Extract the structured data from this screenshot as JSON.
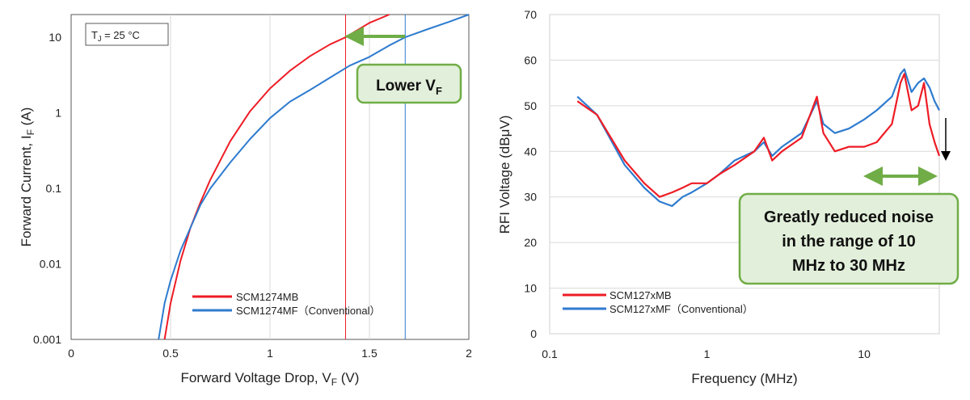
{
  "colors": {
    "series_new": "#ee1c25",
    "series_conventional": "#2e7bcf",
    "callout_fill": "#e2efda",
    "callout_border": "#70ad47",
    "arrow_green": "#70ad47"
  },
  "chart_data": [
    {
      "type": "line",
      "xlabel": "Forward Voltage Drop, V",
      "xlabel_sub": "F",
      "xlabel_unit": " (V)",
      "ylabel": "Forward Current, I",
      "ylabel_sub": "F",
      "ylabel_unit": " (A)",
      "xlim": [
        0,
        2
      ],
      "ylim": [
        0.001,
        20
      ],
      "yscale": "log",
      "xticks": [
        0,
        0.5,
        1,
        1.5,
        2
      ],
      "xtick_labels": [
        "0",
        "0.5",
        "1",
        "1.5",
        "2"
      ],
      "yticks": [
        0.001,
        0.01,
        0.1,
        1,
        10
      ],
      "ytick_labels": [
        "0.001",
        "0.01",
        "0.1",
        "1",
        "10"
      ],
      "grid": "vertical",
      "condition_label": "T",
      "condition_sub": "J",
      "condition_value": " = 25 °C",
      "legend_placement": "bottom-center",
      "series": [
        {
          "name": "SCM1274MB",
          "color": "#ee1c25",
          "x": [
            0.47,
            0.5,
            0.55,
            0.6,
            0.65,
            0.7,
            0.8,
            0.9,
            1.0,
            1.1,
            1.2,
            1.3,
            1.38,
            1.5,
            1.6
          ],
          "y": [
            0.001,
            0.003,
            0.011,
            0.03,
            0.065,
            0.13,
            0.42,
            1.05,
            2.1,
            3.6,
            5.6,
            8.0,
            10.0,
            15.5,
            20.0
          ]
        },
        {
          "name": "SCM1274MF（Conventional）",
          "color": "#2e7bcf",
          "x": [
            0.44,
            0.47,
            0.5,
            0.55,
            0.6,
            0.65,
            0.7,
            0.8,
            0.9,
            1.0,
            1.1,
            1.2,
            1.3,
            1.4,
            1.5,
            1.6,
            1.68,
            1.8,
            1.9,
            2.0
          ],
          "y": [
            0.001,
            0.003,
            0.006,
            0.015,
            0.03,
            0.06,
            0.1,
            0.22,
            0.45,
            0.85,
            1.4,
            2.0,
            2.9,
            4.2,
            5.5,
            7.8,
            10.0,
            13.0,
            16.0,
            20.0
          ]
        }
      ],
      "markers": [
        {
          "x": 1.38,
          "color": "#ee1c25"
        },
        {
          "x": 1.68,
          "color": "#2e7bcf"
        }
      ],
      "annotation_main": "Lower V",
      "annotation_sub": "F"
    },
    {
      "type": "line",
      "xlabel": "Frequency (MHz)",
      "ylabel": "RFI Voltage (dBμV)",
      "xlim": [
        0.1,
        30
      ],
      "xscale": "log",
      "ylim": [
        0,
        70
      ],
      "xticks": [
        0.1,
        1,
        10
      ],
      "xtick_labels": [
        "0.1",
        "1",
        "10"
      ],
      "yticks": [
        0,
        10,
        20,
        30,
        40,
        50,
        60,
        70
      ],
      "ytick_labels": [
        "0",
        "10",
        "20",
        "30",
        "40",
        "50",
        "60",
        "70"
      ],
      "legend_placement": "bottom-left",
      "series": [
        {
          "name": "SCM127xMB",
          "color": "#ee1c25",
          "x": [
            0.15,
            0.2,
            0.3,
            0.4,
            0.5,
            0.6,
            0.7,
            0.8,
            1.0,
            1.2,
            1.5,
            2.0,
            2.3,
            2.6,
            3.0,
            4.0,
            5.0,
            5.5,
            6.5,
            8.0,
            10.0,
            12.0,
            15.0,
            17.0,
            18.0,
            20.0,
            22.0,
            24.0,
            26.0,
            28.0,
            30.0
          ],
          "y": [
            51.0,
            48.0,
            38.0,
            33.0,
            30.0,
            31.0,
            32.0,
            33.0,
            33.0,
            35.0,
            37.0,
            40.0,
            43.0,
            38.0,
            40.0,
            43.0,
            52.0,
            44.0,
            40.0,
            41.0,
            41.0,
            42.0,
            46.0,
            55.0,
            57.0,
            49.0,
            50.0,
            55.0,
            46.0,
            42.0,
            39.0
          ]
        },
        {
          "name": "SCM127xMF（Conventional）",
          "color": "#2e7bcf",
          "x": [
            0.15,
            0.2,
            0.3,
            0.4,
            0.5,
            0.6,
            0.7,
            0.8,
            1.0,
            1.2,
            1.5,
            2.0,
            2.3,
            2.6,
            3.0,
            4.0,
            5.0,
            5.5,
            6.5,
            8.0,
            10.0,
            12.0,
            15.0,
            17.0,
            18.0,
            20.0,
            22.0,
            24.0,
            26.0,
            28.0,
            30.0
          ],
          "y": [
            52.0,
            48.0,
            37.0,
            32.0,
            29.0,
            28.0,
            30.0,
            31.0,
            33.0,
            35.0,
            38.0,
            40.0,
            42.0,
            39.0,
            41.0,
            44.0,
            51.0,
            46.0,
            44.0,
            45.0,
            47.0,
            49.0,
            52.0,
            57.0,
            58.0,
            53.0,
            55.0,
            56.0,
            54.0,
            51.0,
            49.0
          ]
        }
      ],
      "reduction_arrow": {
        "from_x": 10,
        "to_x": 30
      },
      "drop_arrow": {
        "x": 30,
        "from_y": 48,
        "to_y": 39
      },
      "annotation": [
        "Greatly reduced noise",
        "in the range of 10",
        "MHz to 30 MHz"
      ]
    }
  ]
}
